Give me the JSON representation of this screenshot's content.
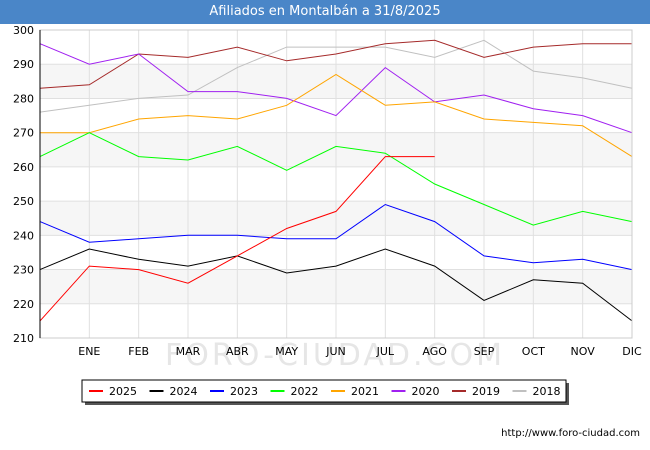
{
  "chart_data": {
    "type": "line",
    "title": "Afiliados en Montalbán a 31/8/2025",
    "categories": [
      "",
      "ENE",
      "FEB",
      "MAR",
      "ABR",
      "MAY",
      "JUN",
      "JUL",
      "AGO",
      "SEP",
      "OCT",
      "NOV",
      "DIC"
    ],
    "ylim": [
      210,
      300
    ],
    "yticks": [
      210,
      220,
      230,
      240,
      250,
      260,
      270,
      280,
      290,
      300
    ],
    "grid": true,
    "legend_position": "bottom",
    "series": [
      {
        "name": "2025",
        "color": "#ff0000",
        "values": [
          215,
          231,
          230,
          226,
          234,
          242,
          247,
          263,
          263,
          null,
          null,
          null,
          null
        ]
      },
      {
        "name": "2024",
        "color": "#000000",
        "values": [
          230,
          236,
          233,
          231,
          234,
          229,
          231,
          236,
          231,
          221,
          227,
          226,
          215
        ]
      },
      {
        "name": "2023",
        "color": "#0000ff",
        "values": [
          244,
          238,
          239,
          240,
          240,
          239,
          239,
          249,
          244,
          234,
          232,
          233,
          230
        ]
      },
      {
        "name": "2022",
        "color": "#00ff00",
        "values": [
          263,
          270,
          263,
          262,
          266,
          259,
          266,
          264,
          255,
          249,
          243,
          247,
          244
        ]
      },
      {
        "name": "2021",
        "color": "#ffa500",
        "values": [
          270,
          270,
          274,
          275,
          274,
          278,
          287,
          278,
          279,
          274,
          273,
          272,
          263
        ]
      },
      {
        "name": "2020",
        "color": "#a020f0",
        "values": [
          296,
          290,
          293,
          282,
          282,
          280,
          275,
          289,
          279,
          281,
          277,
          275,
          270
        ]
      },
      {
        "name": "2019",
        "color": "#a52a2a",
        "values": [
          283,
          284,
          293,
          292,
          295,
          291,
          293,
          296,
          297,
          292,
          295,
          296,
          296
        ]
      },
      {
        "name": "2018",
        "color": "#c0c0c0",
        "values": [
          276,
          278,
          280,
          281,
          289,
          295,
          295,
          295,
          292,
          297,
          288,
          286,
          283
        ]
      }
    ]
  },
  "watermark": "FORO-CIUDAD.COM",
  "source": "http://www.foro-ciudad.com"
}
